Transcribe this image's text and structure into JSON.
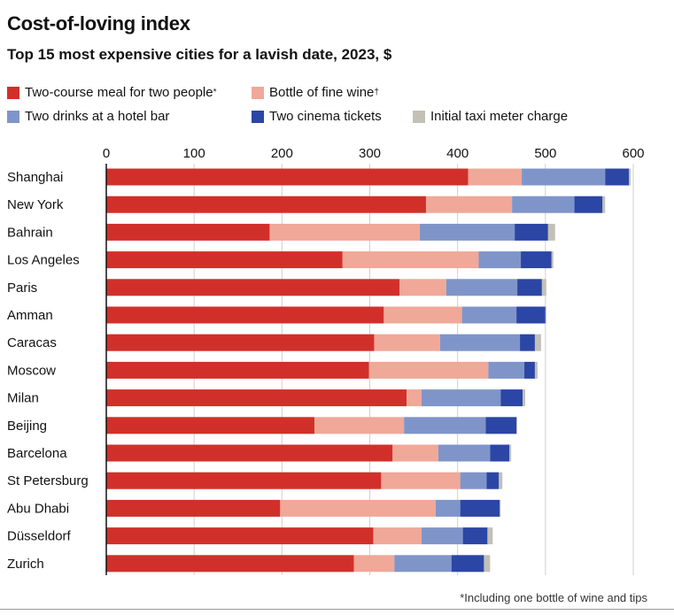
{
  "title": "Cost-of-loving index",
  "subtitle": "Top 15 most expensive cities for a lavish date, 2023, $",
  "footnote": "*Including one bottle of wine and tips",
  "colors": {
    "meal": "#d1302a",
    "wine": "#f0a898",
    "drinks": "#7f95c9",
    "cinema": "#2b46a5",
    "taxi": "#c3c0b6"
  },
  "chart_data": {
    "type": "bar",
    "orientation": "horizontal",
    "stacked": true,
    "title": "Cost-of-loving index",
    "subtitle": "Top 15 most expensive cities for a lavish date, 2023, $",
    "xlim": [
      0,
      600
    ],
    "xticks": [
      0,
      100,
      200,
      300,
      400,
      500,
      600
    ],
    "grid": true,
    "legend_position": "top",
    "categories": [
      "Shanghai",
      "New York",
      "Bahrain",
      "Los Angeles",
      "Paris",
      "Amman",
      "Caracas",
      "Moscow",
      "Milan",
      "Beijing",
      "Barcelona",
      "St Petersburg",
      "Abu Dhabi",
      "Düsseldorf",
      "Zurich"
    ],
    "series": [
      {
        "name": "Two-course meal for two people",
        "marker": "*",
        "color_key": "meal",
        "values": [
          412,
          364,
          186,
          269,
          334,
          316,
          305,
          299,
          342,
          237,
          326,
          313,
          198,
          304,
          282
        ]
      },
      {
        "name": "Bottle of fine wine",
        "marker": "†",
        "color_key": "wine",
        "values": [
          61,
          98,
          171,
          155,
          53,
          89,
          75,
          136,
          17,
          102,
          52,
          90,
          177,
          55,
          46
        ]
      },
      {
        "name": "Two drinks at a hotel bar",
        "marker": "",
        "color_key": "drinks",
        "values": [
          95,
          71,
          108,
          48,
          81,
          62,
          91,
          41,
          90,
          93,
          59,
          30,
          28,
          47,
          65
        ]
      },
      {
        "name": "Two cinema tickets",
        "marker": "",
        "color_key": "cinema",
        "values": [
          27,
          32,
          38,
          35,
          28,
          33,
          17,
          12,
          25,
          35,
          22,
          14,
          45,
          28,
          37
        ]
      },
      {
        "name": "Initial taxi meter charge",
        "marker": "",
        "color_key": "taxi",
        "values": [
          2,
          3,
          8,
          2,
          5,
          1,
          7,
          3,
          3,
          1,
          2,
          4,
          1,
          6,
          7
        ]
      }
    ]
  }
}
